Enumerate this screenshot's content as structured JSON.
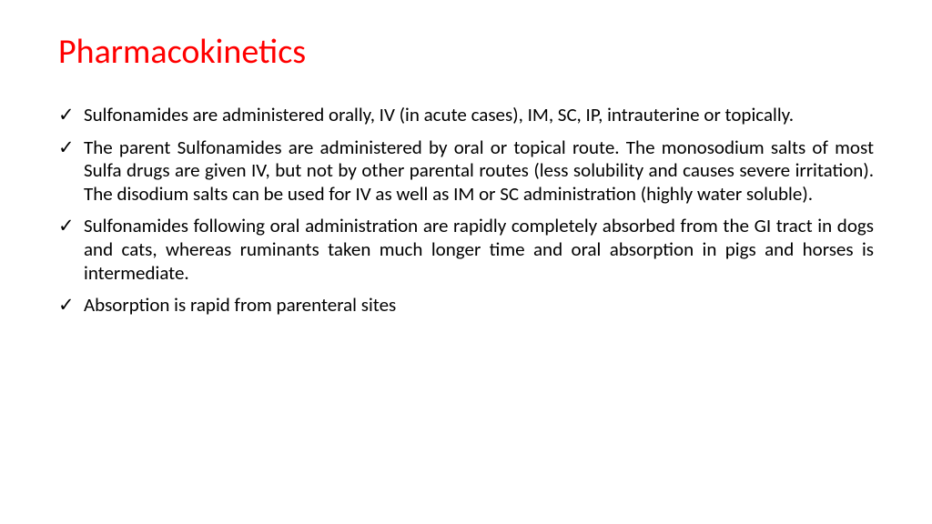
{
  "title": {
    "text": "Pharmacokinetics",
    "color": "#ff0000"
  },
  "checkmark_color": "#000000",
  "body_color": "#000000",
  "bullets": [
    "Sulfonamides are administered orally, IV (in acute cases), IM, SC, IP, intrauterine or topically.",
    "The parent Sulfonamides are administered by oral or topical route. The monosodium salts of most Sulfa drugs are given IV, but not by other parental routes (less solubility and causes severe irritation). The disodium salts can be used for IV as well as IM or SC administration (highly water soluble).",
    "Sulfonamides following oral administration are rapidly completely absorbed from the GI tract in dogs and cats, whereas ruminants taken much longer time and oral absorption in pigs and horses is intermediate.",
    "Absorption is rapid from parenteral sites"
  ]
}
